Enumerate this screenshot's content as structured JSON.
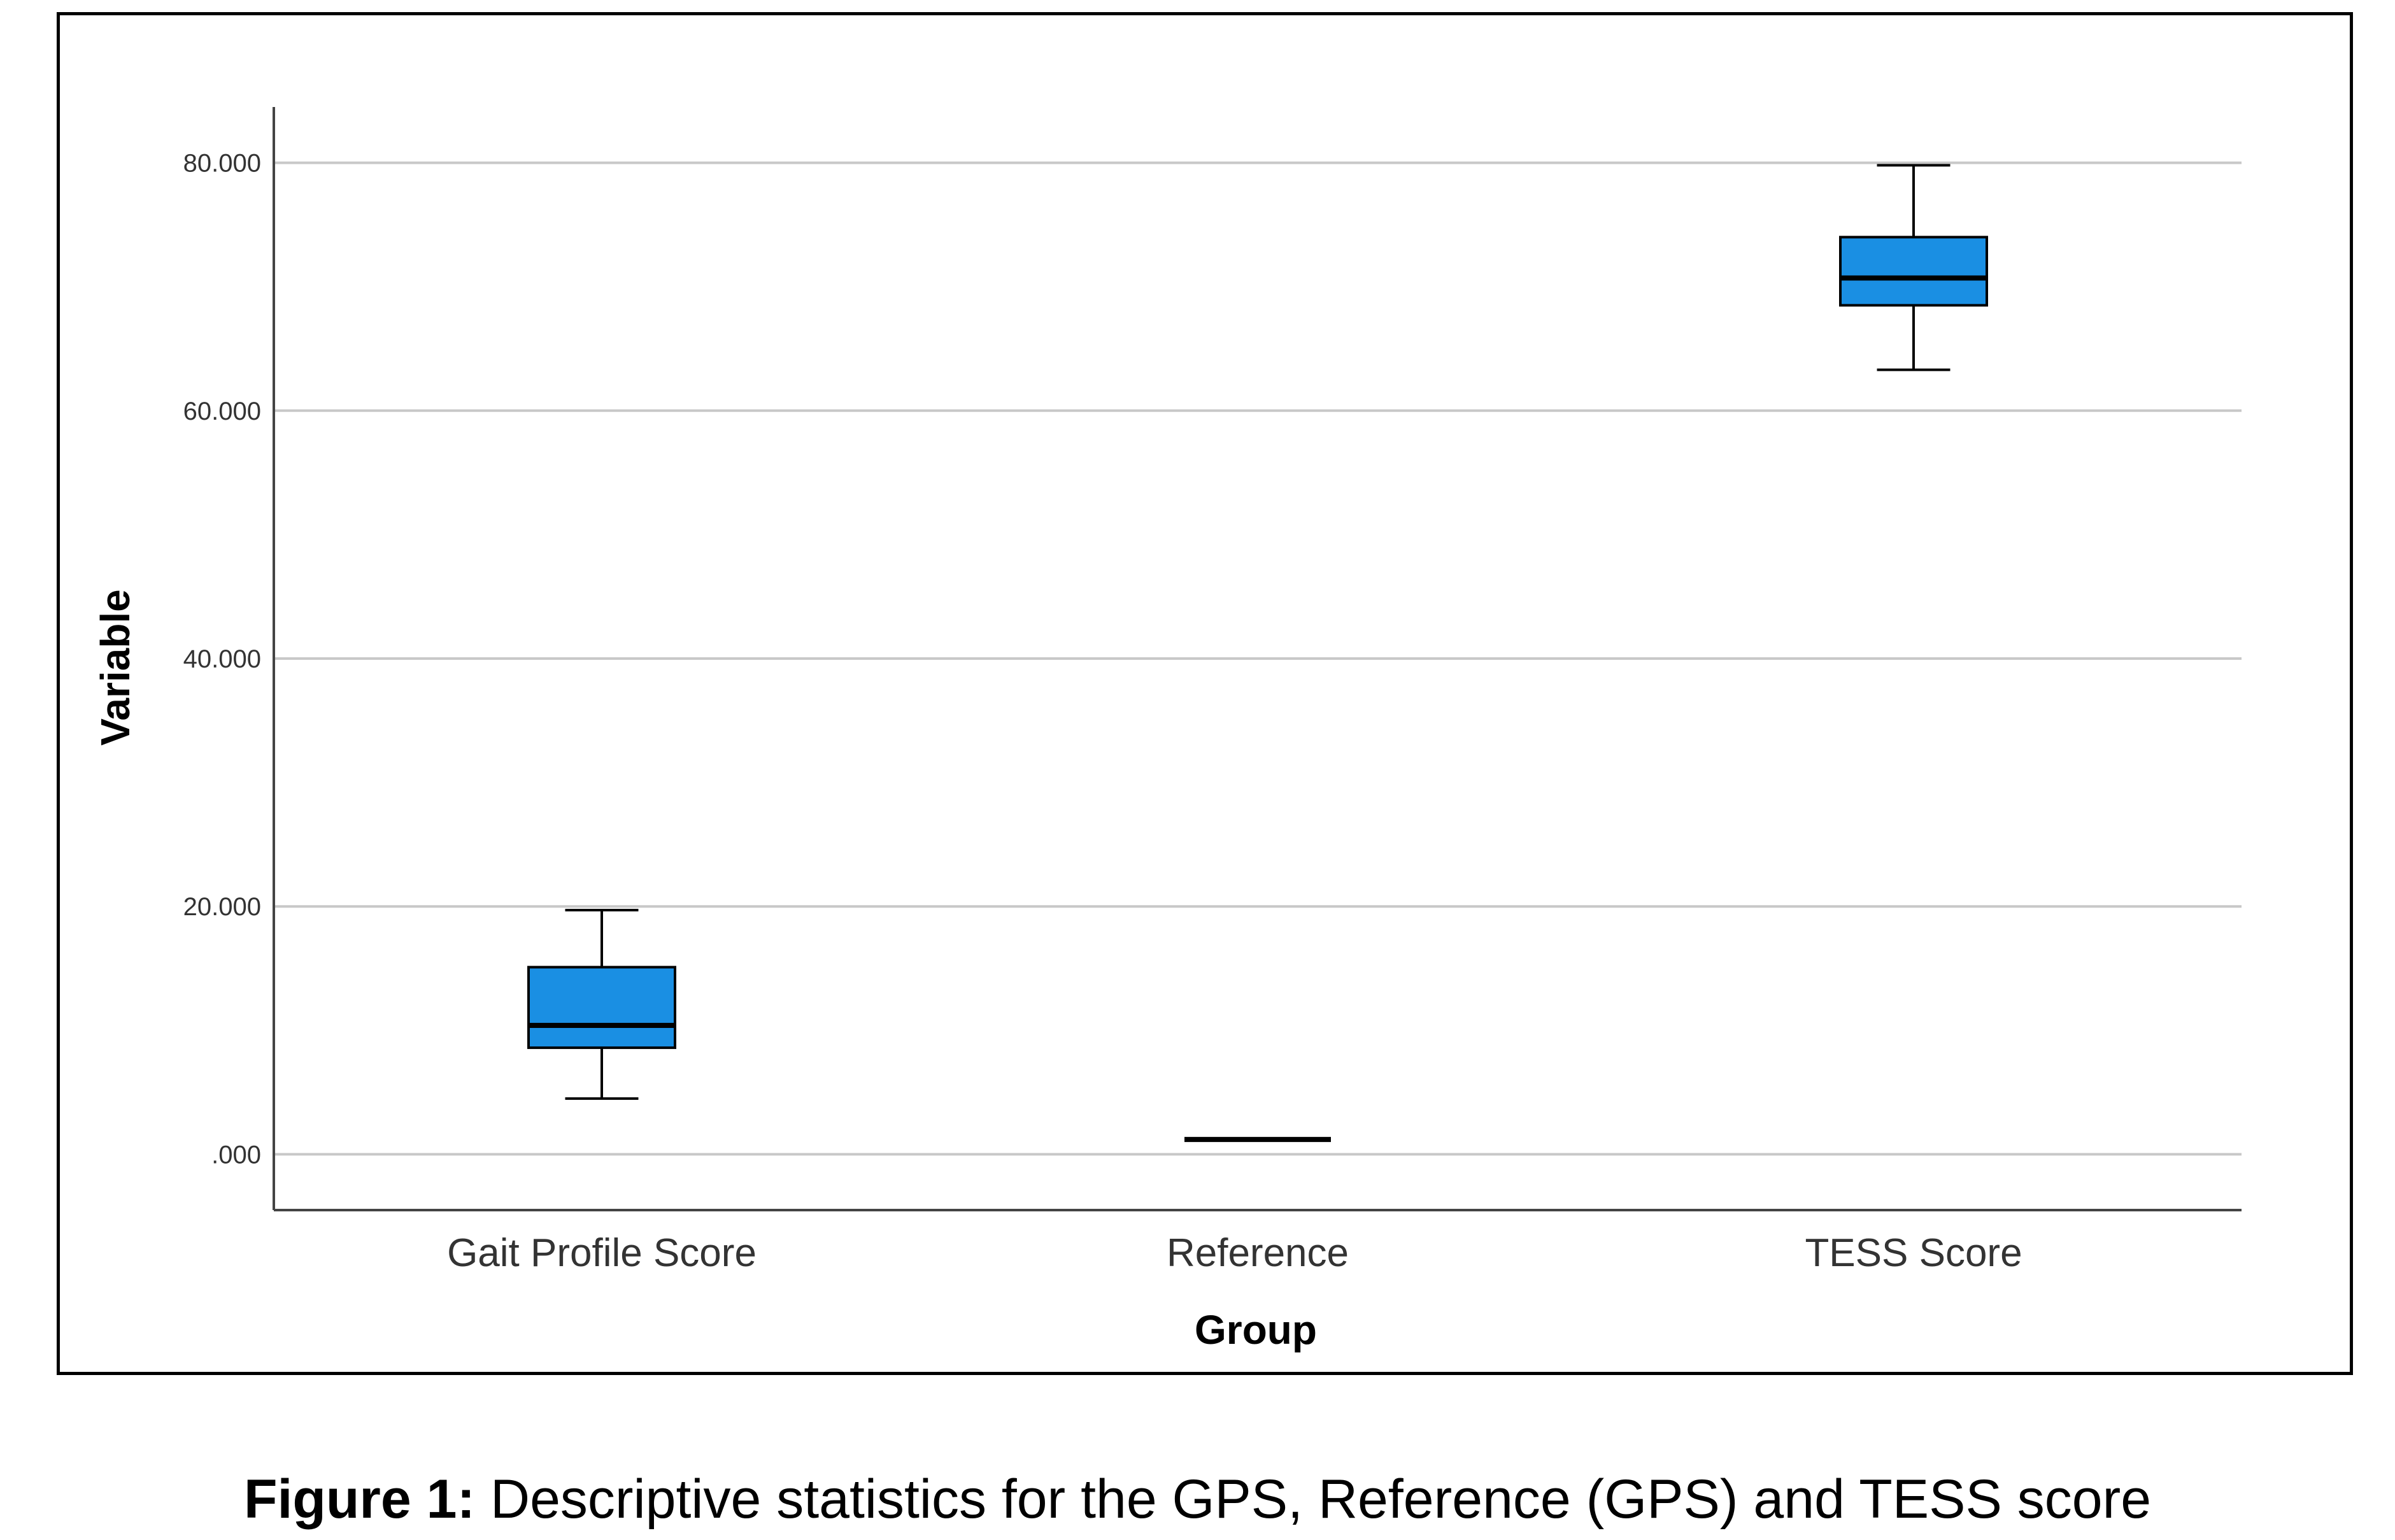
{
  "chart_data": {
    "type": "boxplot",
    "xlabel": "Group",
    "ylabel": "Variable",
    "ylim": [
      -4.5,
      84.5
    ],
    "yticks": [
      0,
      20,
      40,
      60,
      80
    ],
    "ytick_labels": [
      ".000",
      "20.000",
      "40.000",
      "60.000",
      "80.000"
    ],
    "grid": true,
    "categories": [
      "Gait Profile Score",
      "Reference",
      "TESS Score"
    ],
    "boxes": [
      {
        "category": "Gait Profile Score",
        "min": 4.5,
        "q1": 8.6,
        "median": 10.4,
        "q3": 15.1,
        "max": 19.7
      },
      {
        "category": "Reference",
        "min": 1.2,
        "q1": 1.2,
        "median": 1.2,
        "q3": 1.2,
        "max": 1.2
      },
      {
        "category": "TESS Score",
        "min": 63.3,
        "q1": 68.5,
        "median": 70.7,
        "q3": 74.0,
        "max": 79.8
      }
    ],
    "colors": {
      "box_fill": "#1a8fe3",
      "grid": "#c8c8c8",
      "axis": "#444444"
    }
  },
  "caption": {
    "label": "Figure 1:",
    "text": " Descriptive statistics for the GPS, Reference (GPS) and TESS score"
  }
}
